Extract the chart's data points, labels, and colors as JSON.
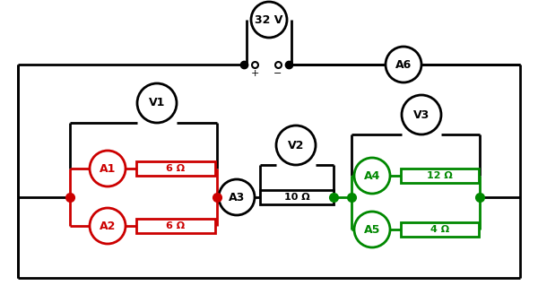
{
  "bg_color": "#ffffff",
  "red_color": "#cc0000",
  "green_color": "#008800",
  "black_color": "#000000",
  "resistor_labels": {
    "R1": "6 Ω",
    "R2": "6 Ω",
    "R3": "10 Ω",
    "R4": "12 Ω",
    "R5": "4 Ω"
  },
  "battery_label": "32 V",
  "figsize": [
    6.0,
    3.38
  ],
  "dpi": 100
}
